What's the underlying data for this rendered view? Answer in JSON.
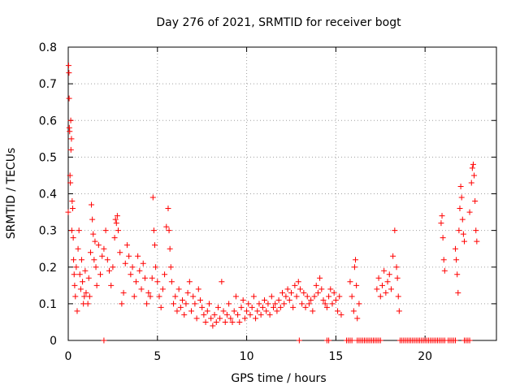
{
  "chart_data": {
    "type": "scatter",
    "title": "Day 276 of 2021, SRMTID for receiver bogt",
    "xlabel": "GPS time / hours",
    "ylabel": "SRMTID / TECUs",
    "xlim": [
      0,
      24
    ],
    "ylim": [
      0,
      0.8
    ],
    "x_ticks": [
      0,
      5,
      10,
      15,
      20
    ],
    "y_ticks": [
      0,
      0.1,
      0.2,
      0.3,
      0.4,
      0.5,
      0.6,
      0.7,
      0.8
    ],
    "x_tick_labels": [
      "0",
      "5",
      "10",
      "15",
      "20"
    ],
    "y_tick_labels": [
      "0",
      "0.1",
      "0.2",
      "0.3",
      "0.4",
      "0.5",
      "0.6",
      "0.7",
      "0.8"
    ],
    "grid": true,
    "marker": "+",
    "color": "#ff0000",
    "series": [
      {
        "name": "SRMTID",
        "points": [
          [
            0.0,
            0.35
          ],
          [
            0.02,
            0.75
          ],
          [
            0.04,
            0.73
          ],
          [
            0.05,
            0.66
          ],
          [
            0.06,
            0.58
          ],
          [
            0.08,
            0.57
          ],
          [
            0.1,
            0.45
          ],
          [
            0.12,
            0.43
          ],
          [
            0.14,
            0.6
          ],
          [
            0.15,
            0.52
          ],
          [
            0.18,
            0.55
          ],
          [
            0.2,
            0.3
          ],
          [
            0.22,
            0.38
          ],
          [
            0.25,
            0.36
          ],
          [
            0.28,
            0.28
          ],
          [
            0.3,
            0.22
          ],
          [
            0.33,
            0.18
          ],
          [
            0.36,
            0.15
          ],
          [
            0.4,
            0.12
          ],
          [
            0.45,
            0.2
          ],
          [
            0.5,
            0.08
          ],
          [
            0.55,
            0.25
          ],
          [
            0.6,
            0.3
          ],
          [
            0.65,
            0.18
          ],
          [
            0.7,
            0.14
          ],
          [
            0.75,
            0.22
          ],
          [
            0.8,
            0.16
          ],
          [
            0.85,
            0.1
          ],
          [
            0.9,
            0.12
          ],
          [
            0.95,
            0.19
          ],
          [
            1.0,
            0.13
          ],
          [
            1.1,
            0.1
          ],
          [
            1.15,
            0.17
          ],
          [
            1.2,
            0.12
          ],
          [
            1.25,
            0.24
          ],
          [
            1.3,
            0.37
          ],
          [
            1.35,
            0.33
          ],
          [
            1.4,
            0.29
          ],
          [
            1.45,
            0.22
          ],
          [
            1.5,
            0.27
          ],
          [
            1.55,
            0.2
          ],
          [
            1.6,
            0.15
          ],
          [
            1.7,
            0.26
          ],
          [
            1.8,
            0.18
          ],
          [
            1.9,
            0.23
          ],
          [
            2.0,
            0.25
          ],
          [
            2.1,
            0.3
          ],
          [
            2.2,
            0.22
          ],
          [
            2.3,
            0.19
          ],
          [
            2.4,
            0.15
          ],
          [
            2.5,
            0.2
          ],
          [
            2.6,
            0.28
          ],
          [
            2.65,
            0.33
          ],
          [
            2.7,
            0.32
          ],
          [
            2.75,
            0.34
          ],
          [
            2.8,
            0.3
          ],
          [
            2.9,
            0.24
          ],
          [
            3.0,
            0.1
          ],
          [
            3.1,
            0.13
          ],
          [
            3.2,
            0.21
          ],
          [
            3.3,
            0.26
          ],
          [
            3.4,
            0.23
          ],
          [
            3.5,
            0.18
          ],
          [
            3.6,
            0.2
          ],
          [
            3.7,
            0.12
          ],
          [
            3.8,
            0.16
          ],
          [
            3.9,
            0.23
          ],
          [
            4.0,
            0.19
          ],
          [
            4.1,
            0.14
          ],
          [
            4.2,
            0.21
          ],
          [
            4.3,
            0.17
          ],
          [
            4.4,
            0.1
          ],
          [
            4.5,
            0.13
          ],
          [
            4.6,
            0.12
          ],
          [
            4.7,
            0.17
          ],
          [
            4.75,
            0.39
          ],
          [
            4.8,
            0.3
          ],
          [
            4.85,
            0.26
          ],
          [
            4.9,
            0.2
          ],
          [
            5.0,
            0.16
          ],
          [
            5.1,
            0.12
          ],
          [
            5.2,
            0.09
          ],
          [
            5.3,
            0.14
          ],
          [
            5.4,
            0.18
          ],
          [
            5.5,
            0.31
          ],
          [
            5.6,
            0.36
          ],
          [
            5.65,
            0.3
          ],
          [
            5.7,
            0.25
          ],
          [
            5.75,
            0.2
          ],
          [
            5.8,
            0.16
          ],
          [
            5.9,
            0.1
          ],
          [
            6.0,
            0.12
          ],
          [
            6.1,
            0.08
          ],
          [
            6.2,
            0.14
          ],
          [
            6.3,
            0.09
          ],
          [
            6.4,
            0.11
          ],
          [
            6.5,
            0.07
          ],
          [
            6.6,
            0.1
          ],
          [
            6.7,
            0.13
          ],
          [
            6.8,
            0.16
          ],
          [
            6.9,
            0.08
          ],
          [
            7.0,
            0.12
          ],
          [
            7.1,
            0.1
          ],
          [
            7.2,
            0.06
          ],
          [
            7.3,
            0.14
          ],
          [
            7.4,
            0.11
          ],
          [
            7.5,
            0.09
          ],
          [
            7.6,
            0.07
          ],
          [
            7.7,
            0.05
          ],
          [
            7.8,
            0.08
          ],
          [
            7.9,
            0.1
          ],
          [
            8.0,
            0.06
          ],
          [
            8.1,
            0.04
          ],
          [
            8.2,
            0.07
          ],
          [
            8.3,
            0.05
          ],
          [
            8.4,
            0.09
          ],
          [
            8.5,
            0.06
          ],
          [
            8.6,
            0.16
          ],
          [
            8.7,
            0.08
          ],
          [
            8.8,
            0.05
          ],
          [
            8.9,
            0.07
          ],
          [
            9.0,
            0.1
          ],
          [
            9.1,
            0.06
          ],
          [
            9.2,
            0.05
          ],
          [
            9.3,
            0.08
          ],
          [
            9.4,
            0.12
          ],
          [
            9.5,
            0.07
          ],
          [
            9.6,
            0.05
          ],
          [
            9.7,
            0.09
          ],
          [
            9.8,
            0.11
          ],
          [
            9.9,
            0.06
          ],
          [
            10.0,
            0.08
          ],
          [
            10.1,
            0.1
          ],
          [
            10.2,
            0.07
          ],
          [
            10.3,
            0.09
          ],
          [
            10.4,
            0.12
          ],
          [
            10.5,
            0.06
          ],
          [
            10.6,
            0.08
          ],
          [
            10.7,
            0.1
          ],
          [
            10.8,
            0.07
          ],
          [
            10.9,
            0.09
          ],
          [
            11.0,
            0.11
          ],
          [
            11.1,
            0.08
          ],
          [
            11.2,
            0.1
          ],
          [
            11.3,
            0.07
          ],
          [
            11.4,
            0.12
          ],
          [
            11.5,
            0.09
          ],
          [
            11.6,
            0.1
          ],
          [
            11.7,
            0.08
          ],
          [
            11.8,
            0.11
          ],
          [
            11.9,
            0.09
          ],
          [
            12.0,
            0.13
          ],
          [
            12.1,
            0.1
          ],
          [
            12.2,
            0.12
          ],
          [
            12.3,
            0.14
          ],
          [
            12.4,
            0.11
          ],
          [
            12.5,
            0.13
          ],
          [
            12.6,
            0.09
          ],
          [
            12.7,
            0.15
          ],
          [
            12.8,
            0.12
          ],
          [
            12.9,
            0.16
          ],
          [
            13.0,
            0.14
          ],
          [
            13.1,
            0.1
          ],
          [
            13.2,
            0.13
          ],
          [
            13.3,
            0.09
          ],
          [
            13.4,
            0.12
          ],
          [
            13.5,
            0.1
          ],
          [
            13.6,
            0.11
          ],
          [
            13.7,
            0.08
          ],
          [
            13.8,
            0.12
          ],
          [
            13.9,
            0.15
          ],
          [
            14.0,
            0.13
          ],
          [
            14.1,
            0.17
          ],
          [
            14.2,
            0.14
          ],
          [
            14.3,
            0.11
          ],
          [
            14.4,
            0.1
          ],
          [
            14.5,
            0.09
          ],
          [
            14.6,
            0.12
          ],
          [
            14.7,
            0.14
          ],
          [
            14.8,
            0.1
          ],
          [
            14.9,
            0.13
          ],
          [
            15.0,
            0.11
          ],
          [
            15.1,
            0.08
          ],
          [
            15.2,
            0.12
          ],
          [
            15.3,
            0.07
          ],
          [
            15.8,
            0.16
          ],
          [
            15.9,
            0.12
          ],
          [
            16.0,
            0.08
          ],
          [
            16.05,
            0.2
          ],
          [
            16.1,
            0.22
          ],
          [
            16.15,
            0.15
          ],
          [
            16.2,
            0.06
          ],
          [
            16.3,
            0.1
          ],
          [
            17.3,
            0.14
          ],
          [
            17.4,
            0.17
          ],
          [
            17.5,
            0.12
          ],
          [
            17.6,
            0.15
          ],
          [
            17.7,
            0.19
          ],
          [
            17.8,
            0.13
          ],
          [
            17.9,
            0.16
          ],
          [
            18.0,
            0.18
          ],
          [
            18.1,
            0.14
          ],
          [
            18.2,
            0.23
          ],
          [
            18.3,
            0.3
          ],
          [
            18.4,
            0.2
          ],
          [
            18.45,
            0.17
          ],
          [
            18.5,
            0.12
          ],
          [
            18.55,
            0.08
          ],
          [
            20.9,
            0.32
          ],
          [
            20.95,
            0.34
          ],
          [
            21.0,
            0.28
          ],
          [
            21.05,
            0.22
          ],
          [
            21.1,
            0.19
          ],
          [
            21.7,
            0.25
          ],
          [
            21.75,
            0.22
          ],
          [
            21.8,
            0.18
          ],
          [
            21.85,
            0.13
          ],
          [
            21.9,
            0.3
          ],
          [
            21.95,
            0.36
          ],
          [
            22.0,
            0.42
          ],
          [
            22.05,
            0.39
          ],
          [
            22.1,
            0.33
          ],
          [
            22.15,
            0.29
          ],
          [
            22.2,
            0.27
          ],
          [
            22.5,
            0.35
          ],
          [
            22.6,
            0.43
          ],
          [
            22.65,
            0.47
          ],
          [
            22.7,
            0.48
          ],
          [
            22.75,
            0.45
          ],
          [
            22.8,
            0.38
          ],
          [
            22.85,
            0.3
          ],
          [
            22.9,
            0.27
          ],
          [
            2.0,
            0.0
          ],
          [
            12.95,
            0.0
          ],
          [
            14.5,
            0.0
          ],
          [
            14.6,
            0.0
          ],
          [
            15.6,
            0.0
          ],
          [
            15.7,
            0.0
          ],
          [
            15.8,
            0.0
          ],
          [
            15.9,
            0.0
          ],
          [
            16.2,
            0.0
          ],
          [
            16.3,
            0.0
          ],
          [
            16.4,
            0.0
          ],
          [
            16.5,
            0.0
          ],
          [
            16.6,
            0.0
          ],
          [
            16.7,
            0.0
          ],
          [
            16.8,
            0.0
          ],
          [
            16.9,
            0.0
          ],
          [
            17.0,
            0.0
          ],
          [
            17.1,
            0.0
          ],
          [
            17.2,
            0.0
          ],
          [
            17.3,
            0.0
          ],
          [
            17.4,
            0.0
          ],
          [
            17.5,
            0.0
          ],
          [
            18.6,
            0.0
          ],
          [
            18.7,
            0.0
          ],
          [
            18.8,
            0.0
          ],
          [
            18.9,
            0.0
          ],
          [
            19.0,
            0.0
          ],
          [
            19.1,
            0.0
          ],
          [
            19.2,
            0.0
          ],
          [
            19.3,
            0.0
          ],
          [
            19.4,
            0.0
          ],
          [
            19.5,
            0.0
          ],
          [
            19.6,
            0.0
          ],
          [
            19.7,
            0.0
          ],
          [
            19.8,
            0.0
          ],
          [
            19.9,
            0.0
          ],
          [
            20.0,
            0.0
          ],
          [
            20.1,
            0.0
          ],
          [
            20.2,
            0.0
          ],
          [
            20.3,
            0.0
          ],
          [
            20.4,
            0.0
          ],
          [
            20.5,
            0.0
          ],
          [
            20.6,
            0.0
          ],
          [
            20.7,
            0.0
          ],
          [
            20.8,
            0.0
          ],
          [
            20.9,
            0.0
          ],
          [
            21.0,
            0.0
          ],
          [
            21.1,
            0.0
          ],
          [
            21.3,
            0.0
          ],
          [
            21.4,
            0.0
          ],
          [
            21.5,
            0.0
          ],
          [
            21.6,
            0.0
          ],
          [
            21.7,
            0.0
          ],
          [
            22.2,
            0.0
          ],
          [
            22.3,
            0.0
          ],
          [
            22.4,
            0.0
          ],
          [
            22.5,
            0.0
          ]
        ]
      }
    ]
  }
}
